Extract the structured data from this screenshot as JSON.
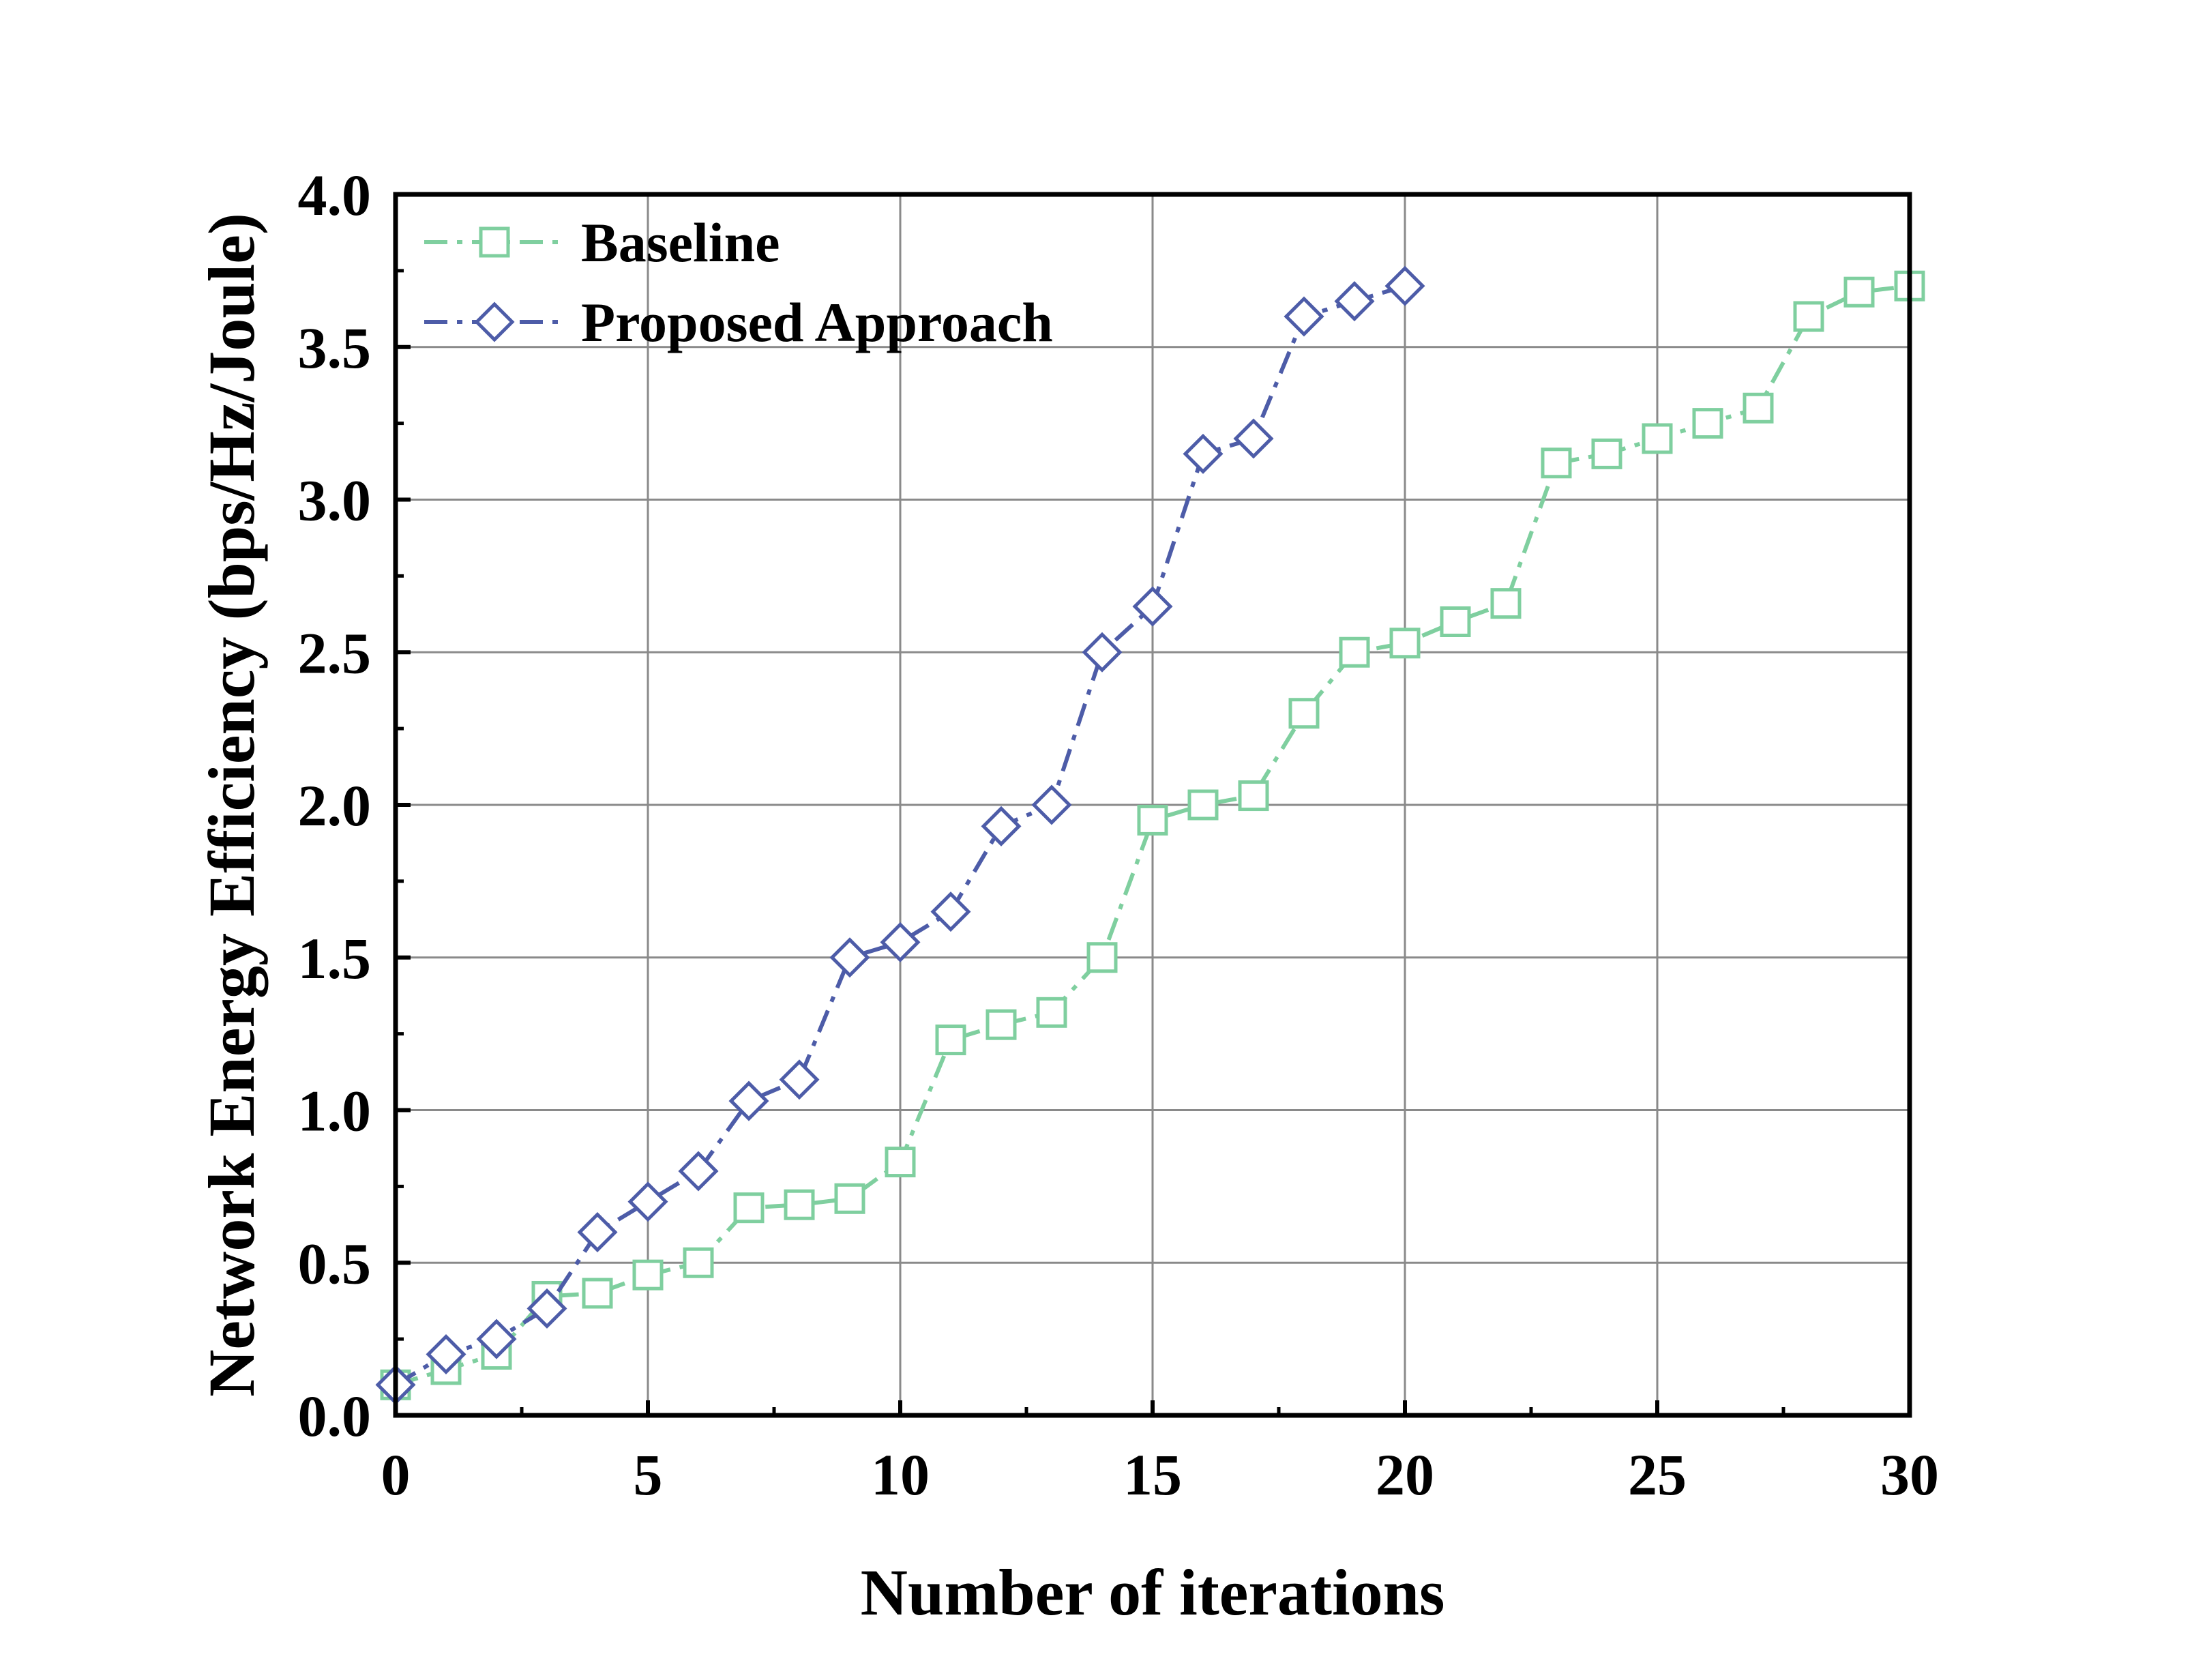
{
  "chart_data": {
    "type": "line",
    "title": "",
    "xlabel": "Number of iterations",
    "ylabel": "Network Energy Efficiency (bps/Hz/Joule)",
    "xlim": [
      0,
      30
    ],
    "ylim": [
      0,
      4.0
    ],
    "xticks": [
      0,
      5,
      10,
      15,
      20,
      25,
      30
    ],
    "xtick_labels": [
      "0",
      "5",
      "10",
      "15",
      "20",
      "25",
      "30"
    ],
    "yticks": [
      0,
      0.5,
      1.0,
      1.5,
      2.0,
      2.5,
      3.0,
      3.5,
      4.0
    ],
    "ytick_labels": [
      "0.0",
      "0.5",
      "1.0",
      "1.5",
      "2.0",
      "2.5",
      "3.0",
      "3.5",
      "4.0"
    ],
    "grid": true,
    "legend_position": "top-left",
    "series": [
      {
        "name": "Baseline",
        "color": "#7fcf9f",
        "marker": "square",
        "line_style": "dash-dot",
        "x": [
          0,
          1,
          2,
          3,
          4,
          5,
          6,
          7,
          8,
          9,
          10,
          11,
          12,
          13,
          14,
          15,
          16,
          17,
          18,
          19,
          20,
          21,
          22,
          23,
          24,
          25,
          26,
          27,
          28,
          29,
          30
        ],
        "values": [
          0.1,
          0.15,
          0.2,
          0.39,
          0.4,
          0.46,
          0.5,
          0.68,
          0.69,
          0.71,
          0.83,
          1.23,
          1.28,
          1.32,
          1.5,
          1.95,
          2.0,
          2.03,
          2.3,
          2.5,
          2.53,
          2.6,
          2.66,
          3.12,
          3.15,
          3.2,
          3.25,
          3.3,
          3.6,
          3.68,
          3.7
        ]
      },
      {
        "name": "Proposed Approach",
        "color": "#4d5ca8",
        "marker": "diamond",
        "line_style": "dash-dot",
        "x": [
          0,
          1,
          2,
          3,
          4,
          5,
          6,
          7,
          8,
          9,
          10,
          11,
          12,
          13,
          14,
          15,
          16,
          17,
          18,
          19,
          20
        ],
        "values": [
          0.1,
          0.2,
          0.25,
          0.35,
          0.6,
          0.7,
          0.8,
          1.03,
          1.1,
          1.5,
          1.55,
          1.65,
          1.93,
          2.0,
          2.5,
          2.65,
          3.15,
          3.2,
          3.6,
          3.65,
          3.7
        ]
      }
    ]
  }
}
